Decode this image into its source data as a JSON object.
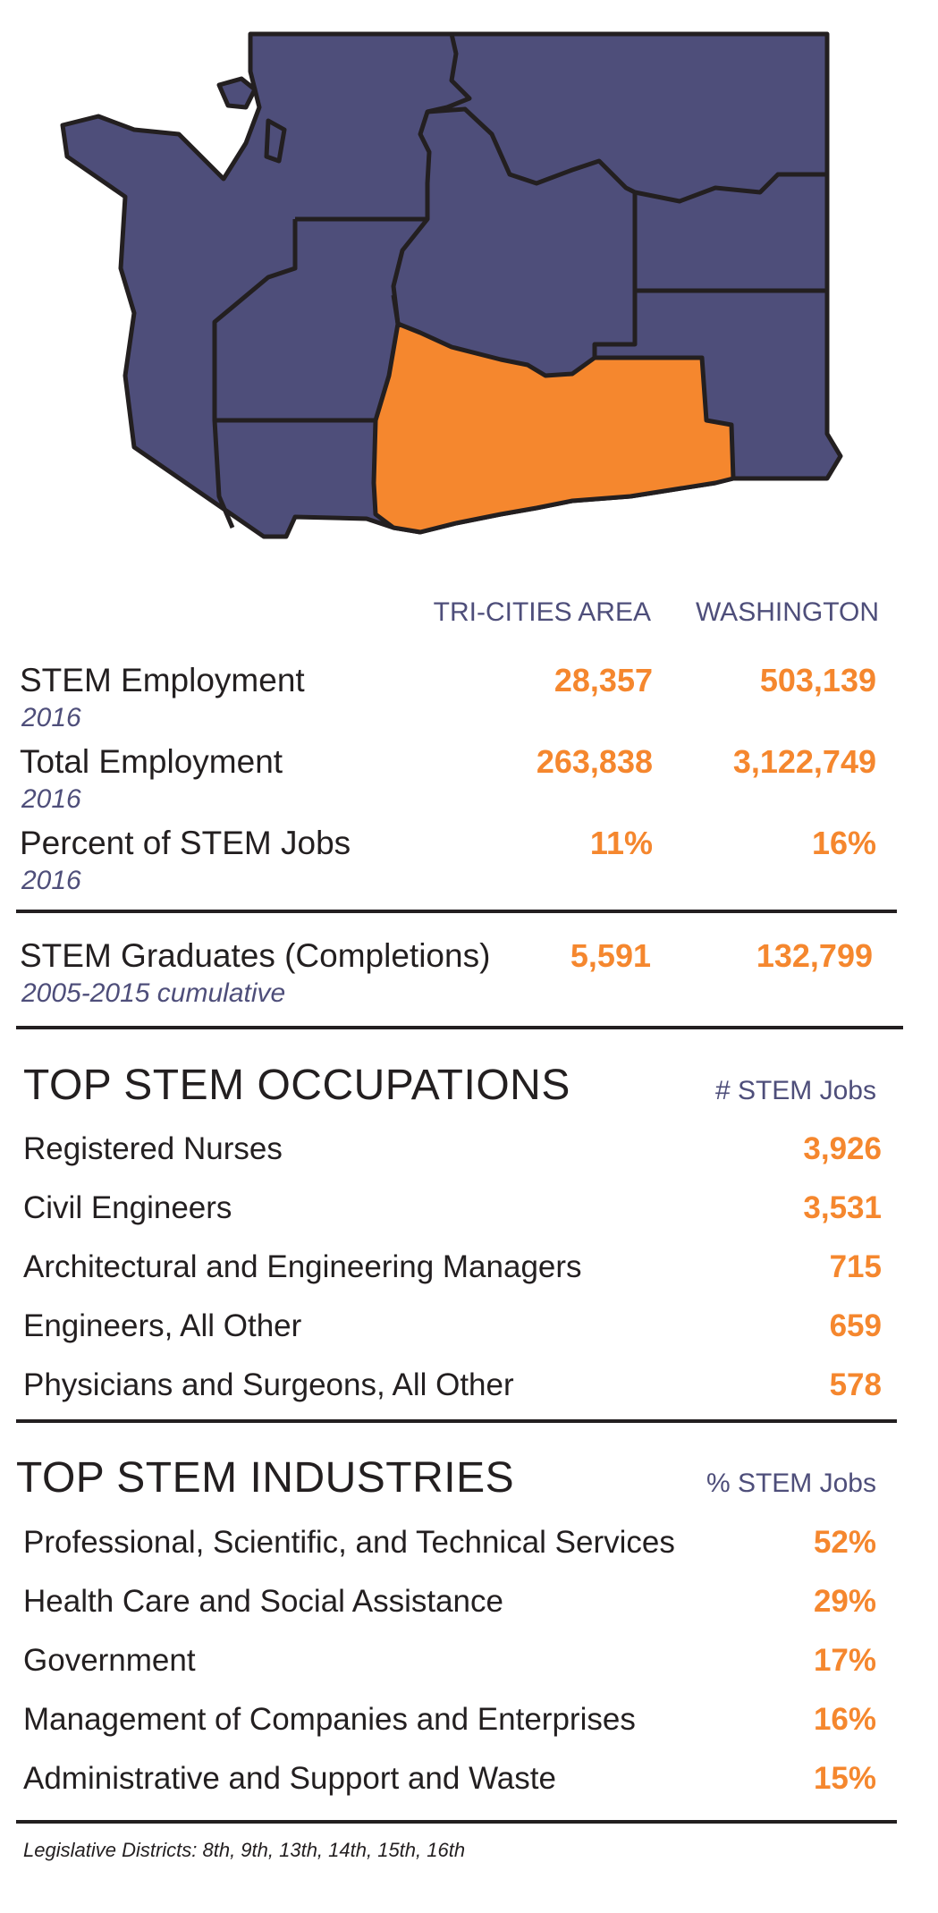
{
  "map": {
    "region_color": "#4e4e7a",
    "highlight_color": "#f5872e",
    "outline_color": "#231f20"
  },
  "columns": {
    "area": "TRI-CITIES AREA",
    "state": "WASHINGTON"
  },
  "stats": [
    {
      "label": "STEM Employment",
      "sub": "2016",
      "area": "28,357",
      "state": "503,139"
    },
    {
      "label": "Total Employment",
      "sub": "2016",
      "area": "263,838",
      "state": "3,122,749"
    },
    {
      "label": "Percent of STEM Jobs",
      "sub": "2016",
      "area": "11%",
      "state": "16%"
    }
  ],
  "graduates": {
    "label": "STEM Graduates (Completions)",
    "sub": "2005-2015 cumulative",
    "area": "5,591",
    "state": "132,799"
  },
  "occupations": {
    "title": "TOP STEM OCCUPATIONS",
    "column": "# STEM Jobs",
    "rows": [
      {
        "label": "Registered Nurses",
        "value": "3,926"
      },
      {
        "label": "Civil Engineers",
        "value": "3,531"
      },
      {
        "label": "Architectural and Engineering Managers",
        "value": "715"
      },
      {
        "label": "Engineers, All Other",
        "value": "659"
      },
      {
        "label": "Physicians and Surgeons, All Other",
        "value": "578"
      }
    ]
  },
  "industries": {
    "title": "TOP STEM INDUSTRIES",
    "column": "% STEM Jobs",
    "rows": [
      {
        "label": "Professional, Scientific, and Technical Services",
        "value": "52%"
      },
      {
        "label": "Health Care and Social Assistance",
        "value": "29%"
      },
      {
        "label": "Government",
        "value": "17%"
      },
      {
        "label": "Management of Companies and Enterprises",
        "value": "16%"
      },
      {
        "label": "Administrative and Support and Waste",
        "value": "15%"
      }
    ]
  },
  "footer": "Legislative Districts: 8th, 9th, 13th, 14th, 15th, 16th"
}
